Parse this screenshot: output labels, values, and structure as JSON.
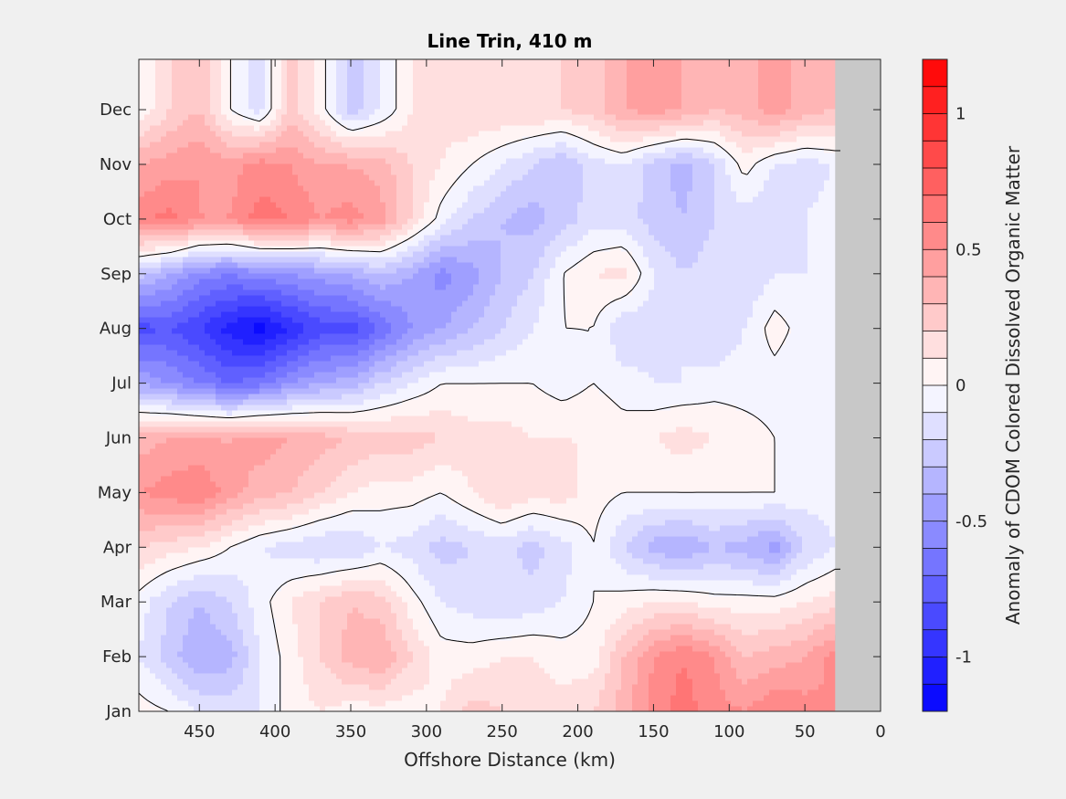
{
  "chart_data": {
    "type": "heatmap",
    "subtype": "filled-contour",
    "title": "Line Trin, 410 m",
    "xlabel": "Offshore Distance (km)",
    "ylabel": "",
    "colorbar_label": "Anomaly of CDOM Colored Dissolved Organic Matter",
    "xlim": [
      490,
      0
    ],
    "x_reversed": true,
    "x_ticks": [
      450,
      400,
      350,
      300,
      250,
      200,
      150,
      100,
      50,
      0
    ],
    "x_tick_labels": [
      "450",
      "400",
      "350",
      "300",
      "250",
      "200",
      "150",
      "100",
      "50",
      "0"
    ],
    "y_ticks": [
      "Jan",
      "Feb",
      "Mar",
      "Apr",
      "May",
      "Jun",
      "Jul",
      "Aug",
      "Sep",
      "Oct",
      "Nov",
      "Dec"
    ],
    "clim": [
      -1.2,
      1.2
    ],
    "colorbar_ticks": [
      -1,
      -0.5,
      0,
      0.5,
      1
    ],
    "colorbar_tick_labels": [
      "-1",
      "-0.5",
      "0",
      "0.5",
      "1"
    ],
    "contour_step": 0.1,
    "zero_contour": true,
    "colormap": "blue-white-red",
    "colors": {
      "negative": "#0000ff",
      "zero": "#ffffff",
      "positive": "#ff0000",
      "no_data": "#c8c8c8"
    },
    "no_data_region_km": [
      0,
      30
    ],
    "x": [
      490,
      470,
      450,
      430,
      410,
      390,
      370,
      350,
      330,
      310,
      290,
      270,
      250,
      230,
      210,
      190,
      170,
      150,
      130,
      110,
      90,
      70,
      50,
      30
    ],
    "y": [
      "Jan",
      "Feb",
      "Mar",
      "Apr",
      "May",
      "Jun",
      "Jul",
      "Aug",
      "Sep",
      "Oct",
      "Nov",
      "Dec"
    ],
    "z": [
      [
        0.05,
        0.0,
        -0.1,
        -0.15,
        -0.1,
        0.05,
        0.1,
        0.05,
        0.05,
        0.05,
        0.1,
        0.25,
        0.2,
        0.15,
        0.15,
        0.2,
        0.35,
        0.55,
        0.65,
        0.55,
        0.5,
        0.6,
        0.55,
        0.5
      ],
      [
        -0.1,
        -0.25,
        -0.4,
        -0.35,
        -0.1,
        0.05,
        0.2,
        0.35,
        0.4,
        0.2,
        0.05,
        0.05,
        0.1,
        0.1,
        0.05,
        0.05,
        0.3,
        0.5,
        0.6,
        0.5,
        0.3,
        0.35,
        0.4,
        0.55
      ],
      [
        -0.05,
        -0.2,
        -0.3,
        -0.2,
        -0.05,
        0.1,
        0.2,
        0.3,
        0.25,
        0.05,
        -0.1,
        -0.15,
        -0.2,
        -0.15,
        -0.1,
        0.0,
        0.05,
        0.1,
        0.1,
        0.05,
        0.05,
        0.05,
        0.1,
        0.15
      ],
      [
        0.2,
        0.15,
        0.1,
        0.0,
        -0.1,
        -0.15,
        -0.2,
        -0.2,
        -0.1,
        -0.15,
        -0.25,
        -0.2,
        -0.15,
        -0.25,
        -0.15,
        0.0,
        -0.2,
        -0.35,
        -0.4,
        -0.3,
        -0.35,
        -0.45,
        -0.2,
        -0.1
      ],
      [
        0.5,
        0.55,
        0.6,
        0.45,
        0.35,
        0.3,
        0.2,
        0.1,
        0.05,
        0.05,
        0.0,
        0.1,
        0.2,
        0.15,
        0.15,
        0.05,
        0.0,
        0.0,
        0.0,
        0.0,
        0.0,
        0.0,
        -0.05,
        -0.05
      ],
      [
        0.35,
        0.4,
        0.4,
        0.4,
        0.45,
        0.4,
        0.35,
        0.3,
        0.25,
        0.25,
        0.2,
        0.15,
        0.15,
        0.1,
        0.1,
        0.1,
        0.05,
        0.1,
        0.15,
        0.1,
        0.05,
        0.0,
        0.0,
        -0.05
      ],
      [
        -0.4,
        -0.5,
        -0.6,
        -0.7,
        -0.65,
        -0.5,
        -0.4,
        -0.35,
        -0.2,
        -0.1,
        0.0,
        0.0,
        0.0,
        0.0,
        -0.05,
        0.0,
        -0.05,
        -0.1,
        -0.1,
        -0.05,
        -0.05,
        -0.05,
        -0.1,
        -0.05
      ],
      [
        -0.85,
        -0.8,
        -0.9,
        -1.05,
        -1.15,
        -1.0,
        -0.85,
        -0.85,
        -0.7,
        -0.5,
        -0.4,
        -0.3,
        -0.2,
        -0.1,
        0.0,
        0.0,
        -0.2,
        -0.15,
        -0.1,
        -0.2,
        -0.1,
        0.05,
        -0.05,
        -0.1
      ],
      [
        -0.25,
        -0.4,
        -0.55,
        -0.6,
        -0.55,
        -0.5,
        -0.45,
        -0.4,
        -0.3,
        -0.4,
        -0.55,
        -0.45,
        -0.3,
        -0.2,
        0.0,
        0.1,
        0.15,
        -0.1,
        -0.2,
        -0.15,
        -0.2,
        -0.1,
        -0.1,
        -0.1
      ],
      [
        0.55,
        0.65,
        0.5,
        0.5,
        0.65,
        0.6,
        0.5,
        0.55,
        0.45,
        0.2,
        -0.05,
        -0.2,
        -0.3,
        -0.35,
        -0.25,
        -0.15,
        -0.15,
        -0.25,
        -0.3,
        -0.2,
        -0.15,
        -0.2,
        -0.1,
        -0.05
      ],
      [
        0.4,
        0.45,
        0.5,
        0.45,
        0.55,
        0.5,
        0.4,
        0.4,
        0.35,
        0.2,
        0.1,
        0.0,
        -0.1,
        -0.2,
        -0.3,
        -0.15,
        -0.1,
        -0.25,
        -0.35,
        -0.2,
        0.05,
        -0.1,
        -0.15,
        -0.1
      ],
      [
        0.0,
        0.2,
        0.3,
        0.0,
        -0.15,
        0.25,
        0.05,
        -0.25,
        -0.1,
        0.1,
        0.15,
        0.2,
        0.2,
        0.2,
        0.2,
        0.25,
        0.4,
        0.45,
        0.4,
        0.3,
        0.35,
        0.45,
        0.35,
        0.3
      ]
    ]
  }
}
